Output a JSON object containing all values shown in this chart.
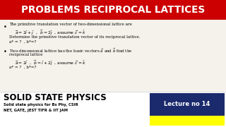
{
  "title": "PROBLEMS RECIPROCAL LATTICES",
  "title_bg": "#cc0000",
  "title_color": "#ffffff",
  "body_bg": "#f0ede8",
  "bullet1_line1": "The primitive translation vector of two-dimensional lattice are",
  "bullet1_math1": "$\\vec{a} = 2\\hat{\\imath}+\\hat{\\jmath}$  ,  $\\vec{b} = 2\\hat{\\jmath}$  , assume $\\vec{c} = \\hat{k}$",
  "bullet1_line3": "Determine the primitive translation vector of its reciprocal lattice.",
  "bullet1_line4": "a* = ?  , b*=?",
  "bullet2_line1": "Two-dimensional lattice has the basic vectors $\\vec{a}$ and $\\vec{b}$ find the",
  "bullet2_line2": "reciprocal lattice",
  "bullet2_math1": "$\\vec{a} = 2\\hat{\\imath}$  ,  $\\vec{b} = \\hat{\\imath} + 2\\hat{\\jmath}$  , assume $\\vec{c} = \\hat{k}$",
  "bullet2_line4": "a* = ?  , b*=?",
  "bottom_title": "SOLID STATE PHYSICS",
  "bottom_sub1": "Solid state physics for Bs Phy, CSIR",
  "bottom_sub2": "NET, GATE, JEST TIFR & IIT JAM",
  "lecture_bg": "#1a2a6c",
  "lecture_text": "Lecture no 14",
  "lecture_text_color": "#ffffff",
  "yellow_bg": "#ffff00",
  "figw": 3.2,
  "figh": 1.8,
  "dpi": 100
}
